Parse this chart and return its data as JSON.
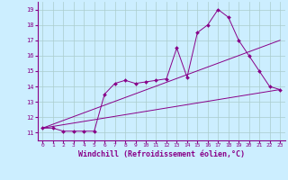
{
  "background_color": "#cceeff",
  "line_color": "#880088",
  "xlabel": "Windchill (Refroidissement éolien,°C)",
  "xlabel_fontsize": 6,
  "xlim": [
    -0.5,
    23.5
  ],
  "ylim": [
    10.5,
    19.5
  ],
  "yticks": [
    11,
    12,
    13,
    14,
    15,
    16,
    17,
    18,
    19
  ],
  "xticks": [
    0,
    1,
    2,
    3,
    4,
    5,
    6,
    7,
    8,
    9,
    10,
    11,
    12,
    13,
    14,
    15,
    16,
    17,
    18,
    19,
    20,
    21,
    22,
    23
  ],
  "grid_color": "#aacccc",
  "series": [
    {
      "x": [
        0,
        1,
        2,
        3,
        4,
        5,
        6,
        7,
        8,
        9,
        10,
        11,
        12,
        13,
        14,
        15,
        16,
        17,
        18,
        19,
        20,
        21,
        22,
        23
      ],
      "y": [
        11.3,
        11.3,
        11.1,
        11.1,
        11.1,
        11.1,
        13.5,
        14.2,
        14.4,
        14.2,
        14.3,
        14.4,
        14.5,
        16.5,
        14.6,
        17.5,
        18.0,
        19.0,
        18.5,
        17.0,
        16.0,
        15.0,
        14.0,
        13.8
      ],
      "marker": true,
      "markersize": 2
    },
    {
      "x": [
        0,
        23
      ],
      "y": [
        11.3,
        13.8
      ],
      "marker": false,
      "markersize": 0
    },
    {
      "x": [
        0,
        23
      ],
      "y": [
        11.3,
        17.0
      ],
      "marker": false,
      "markersize": 0
    }
  ]
}
